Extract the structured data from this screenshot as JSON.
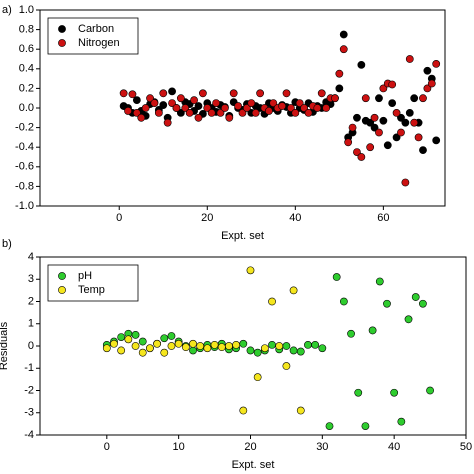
{
  "chart_data": [
    {
      "type": "scatter",
      "panel": "a)",
      "x_label": "Expt. set",
      "legend": "upper left",
      "xlim": [
        -18,
        74
      ],
      "xticks": [
        0,
        20,
        40,
        60
      ],
      "ylim": [
        -1,
        1
      ],
      "yticks": [
        {
          "value": -1,
          "label": "-1.0"
        },
        -0.8,
        -0.6,
        -0.4,
        -0.2,
        {
          "value": 0,
          "label": "0.0"
        },
        0.2,
        0.4,
        0.6,
        0.8,
        {
          "value": 1,
          "label": "1.0"
        }
      ],
      "series": [
        {
          "name": "Carbon",
          "color": "#000000",
          "x": [
            1,
            2,
            3,
            4,
            5,
            6,
            7,
            8,
            9,
            10,
            11,
            12,
            13,
            14,
            15,
            16,
            17,
            18,
            19,
            20,
            21,
            22,
            23,
            24,
            25,
            26,
            27,
            28,
            29,
            30,
            31,
            32,
            33,
            34,
            35,
            36,
            37,
            38,
            39,
            40,
            41,
            42,
            43,
            44,
            45,
            46,
            47,
            48,
            49,
            50,
            51,
            52,
            53,
            54,
            55,
            56,
            57,
            58,
            59,
            60,
            61,
            62,
            63,
            64,
            65,
            66,
            67,
            68,
            69,
            70,
            71,
            72
          ],
          "values": [
            0.02,
            0.0,
            -0.05,
            0.08,
            -0.03,
            -0.08,
            0.04,
            0.06,
            -0.02,
            0.03,
            -0.1,
            0.17,
            0.0,
            -0.05,
            0.06,
            0.04,
            -0.03,
            0.02,
            -0.06,
            0.05,
            0.0,
            -0.04,
            0.03,
            0.01,
            -0.08,
            0.06,
            0.0,
            -0.02,
            0.04,
            -0.05,
            0.02,
            0.0,
            -0.06,
            0.05,
            0.0,
            -0.03,
            0.03,
            0.01,
            -0.05,
            0.06,
            0.0,
            -0.02,
            0.05,
            -0.04,
            0.02,
            0.0,
            0.06,
            0.04,
            0.1,
            0.2,
            0.75,
            -0.3,
            -0.25,
            -0.1,
            0.44,
            -0.13,
            -0.15,
            -0.2,
            0.1,
            -0.13,
            -0.38,
            0.05,
            -0.3,
            -0.1,
            -0.15,
            -0.05,
            0.1,
            -0.15,
            -0.43,
            0.38,
            0.3,
            -0.33
          ]
        },
        {
          "name": "Nitrogen",
          "color": "#cc1111",
          "x": [
            1,
            2,
            3,
            4,
            5,
            6,
            7,
            8,
            9,
            10,
            11,
            12,
            13,
            14,
            15,
            16,
            17,
            18,
            19,
            20,
            21,
            22,
            23,
            24,
            25,
            26,
            27,
            28,
            29,
            30,
            31,
            32,
            33,
            34,
            35,
            36,
            37,
            38,
            39,
            40,
            41,
            42,
            43,
            44,
            45,
            46,
            47,
            48,
            49,
            50,
            51,
            52,
            53,
            54,
            55,
            56,
            57,
            58,
            59,
            60,
            61,
            62,
            63,
            64,
            65,
            66,
            67,
            68,
            69,
            70,
            71,
            72
          ],
          "values": [
            0.15,
            -0.03,
            0.14,
            -0.05,
            -0.1,
            0.0,
            0.1,
            0.05,
            -0.05,
            0.15,
            -0.15,
            0.05,
            0.0,
            0.1,
            0.0,
            -0.05,
            0.08,
            -0.1,
            0.15,
            0.0,
            -0.05,
            0.05,
            -0.05,
            0.0,
            -0.1,
            0.15,
            0.02,
            -0.05,
            0.0,
            0.05,
            -0.05,
            0.15,
            0.0,
            -0.03,
            0.05,
            0.0,
            0.02,
            0.15,
            0.0,
            -0.05,
            0.05,
            0.0,
            -0.05,
            0.02,
            0.0,
            0.15,
            0.0,
            0.1,
            0.1,
            0.35,
            0.6,
            -0.35,
            -0.2,
            -0.45,
            -0.5,
            0.1,
            -0.4,
            -0.1,
            -0.25,
            0.2,
            0.25,
            0.24,
            -0.05,
            -0.25,
            -0.76,
            0.5,
            -0.15,
            -0.3,
            0.1,
            0.2,
            0.25,
            0.45
          ]
        }
      ]
    },
    {
      "type": "scatter",
      "panel": "b)",
      "x_label": "Expt. set",
      "y_label": "Residuals",
      "legend": "upper left",
      "xlim": [
        -9.3,
        50
      ],
      "xticks": [
        0,
        10,
        20,
        30,
        40,
        50
      ],
      "ylim": [
        -4,
        4
      ],
      "yticks": [
        -4,
        -3,
        -2,
        -1,
        0,
        1,
        2,
        3,
        4
      ],
      "series": [
        {
          "name": "pH",
          "color": "#2ecc2e",
          "x": [
            0,
            1,
            2,
            3,
            4,
            5,
            6,
            7,
            8,
            9,
            10,
            11,
            12,
            13,
            14,
            15,
            16,
            17,
            18,
            19,
            20,
            21,
            22,
            23,
            24,
            25,
            26,
            27,
            28,
            29,
            30,
            31,
            32,
            33,
            34,
            35,
            36,
            37,
            38,
            39,
            40,
            41,
            42,
            43,
            44,
            45
          ],
          "values": [
            0.05,
            0.2,
            0.4,
            0.55,
            0.5,
            0.2,
            -0.1,
            0.1,
            0.35,
            0.45,
            0.2,
            0.0,
            -0.2,
            -0.1,
            0.05,
            -0.05,
            0.1,
            -0.15,
            -0.1,
            0.1,
            -0.2,
            -0.3,
            -0.2,
            0.05,
            -0.15,
            0.0,
            -0.2,
            -0.25,
            0.05,
            0.05,
            -0.1,
            -3.6,
            3.1,
            2.0,
            0.55,
            -2.1,
            -3.6,
            0.7,
            2.9,
            1.9,
            -2.1,
            -3.4,
            1.2,
            2.2,
            1.9,
            -2.0
          ]
        },
        {
          "name": "Temp",
          "color": "#f5e61e",
          "x": [
            0,
            1,
            2,
            3,
            4,
            5,
            6,
            7,
            8,
            9,
            10,
            11,
            12,
            13,
            14,
            15,
            16,
            17,
            18,
            19,
            20,
            21,
            22,
            23,
            24,
            25,
            26,
            27
          ],
          "values": [
            -0.1,
            0.1,
            -0.2,
            0.3,
            0.0,
            -0.3,
            -0.1,
            0.1,
            -0.3,
            0.0,
            0.1,
            -0.05,
            0.1,
            0.0,
            -0.1,
            0.05,
            -0.05,
            0.0,
            0.05,
            -2.9,
            3.4,
            -1.4,
            -0.1,
            2.0,
            0.0,
            -0.9,
            2.5,
            -2.9
          ]
        }
      ]
    }
  ]
}
